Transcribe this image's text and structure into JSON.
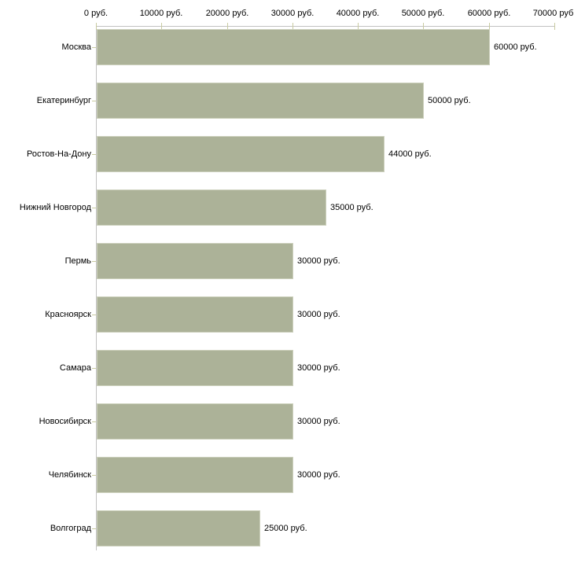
{
  "chart_data": {
    "type": "bar",
    "orientation": "horizontal",
    "title": "",
    "xlabel": "",
    "ylabel": "",
    "categories": [
      "Москва",
      "Екатеринбург",
      "Ростов-На-Дону",
      "Нижний Новгород",
      "Пермь",
      "Красноярск",
      "Самара",
      "Новосибирск",
      "Челябинск",
      "Волгоград"
    ],
    "values": [
      60000,
      50000,
      44000,
      35000,
      30000,
      30000,
      30000,
      30000,
      30000,
      25000
    ],
    "value_labels": [
      "60000 руб.",
      "50000 руб.",
      "44000 руб.",
      "35000 руб.",
      "30000 руб.",
      "30000 руб.",
      "30000 руб.",
      "30000 руб.",
      "30000 руб.",
      "25000 руб."
    ],
    "x_axis": {
      "min": 0,
      "max": 70000,
      "tick_step": 10000,
      "position": "top",
      "tick_labels": [
        "0 руб.",
        "10000 руб.",
        "20000 руб.",
        "30000 руб.",
        "40000 руб.",
        "50000 руб.",
        "60000 руб.",
        "70000 руб."
      ]
    },
    "grid": false,
    "legend": false,
    "colors": {
      "bar_fill": "#acb298",
      "bar_border": "#ccd0bc",
      "axis_line": "#c1c1c1",
      "tick_mark": "#c9cba1",
      "text": "#000000",
      "background": "#ffffff"
    }
  }
}
